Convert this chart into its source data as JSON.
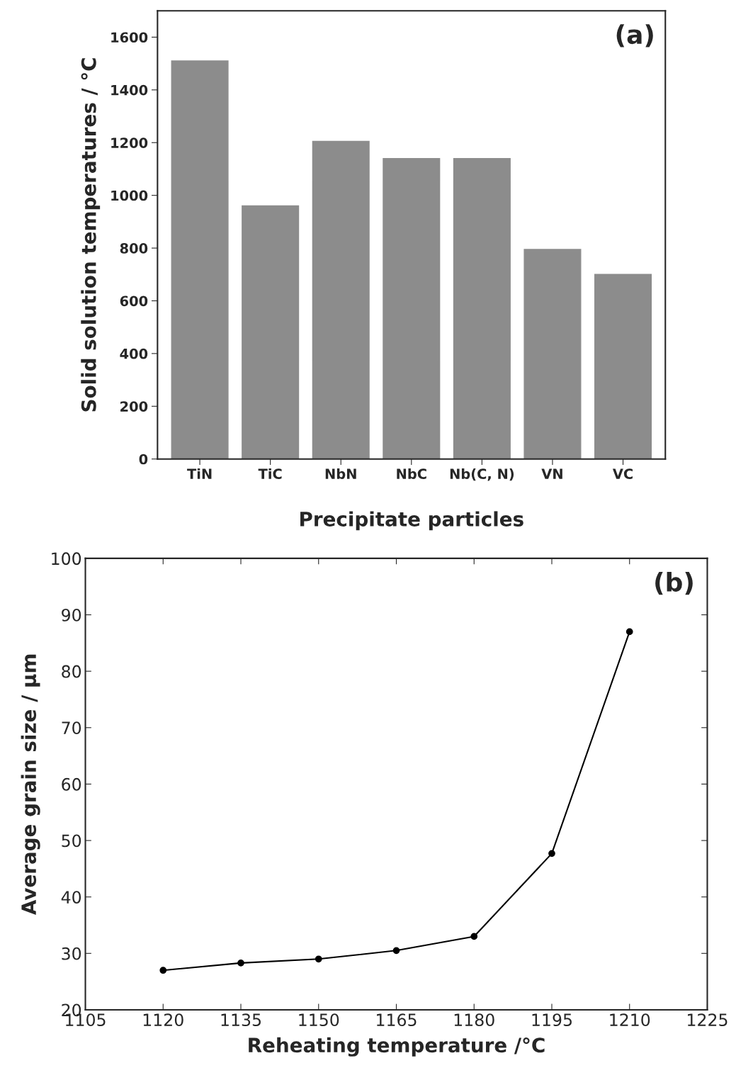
{
  "chart_data": [
    {
      "type": "bar",
      "ylabel": "Solid solution temperatures / °C",
      "xlabel": "Precipitate particles",
      "annotations": [
        "(a)"
      ],
      "categories": [
        "TiN",
        "TiC",
        "NbN",
        "NbC",
        "Nb(C, N)",
        "VN",
        "VC"
      ],
      "values": [
        1510,
        960,
        1205,
        1140,
        1140,
        795,
        700
      ],
      "color": "#8c8c8c",
      "ylim": [
        0,
        1700
      ],
      "yticks": [
        0,
        200,
        400,
        600,
        800,
        1000,
        1200,
        1400,
        1600
      ],
      "grid": false
    },
    {
      "type": "line",
      "ylabel": "Average grain size / µm",
      "xlabel": "Reheating temperature /°C",
      "annotations": [
        "(b)"
      ],
      "x": [
        1120,
        1135,
        1150,
        1165,
        1180,
        1195,
        1210
      ],
      "values": [
        27,
        28.3,
        29,
        30.5,
        33,
        47.7,
        87
      ],
      "color": "#000000",
      "marker": "circle",
      "line_style": "solid",
      "xlim": [
        1105,
        1225
      ],
      "xticks": [
        1105,
        1120,
        1135,
        1150,
        1165,
        1180,
        1195,
        1210,
        1225
      ],
      "ylim": [
        20,
        100
      ],
      "yticks": [
        20,
        30,
        40,
        50,
        60,
        70,
        80,
        90,
        100
      ],
      "grid": false
    }
  ]
}
